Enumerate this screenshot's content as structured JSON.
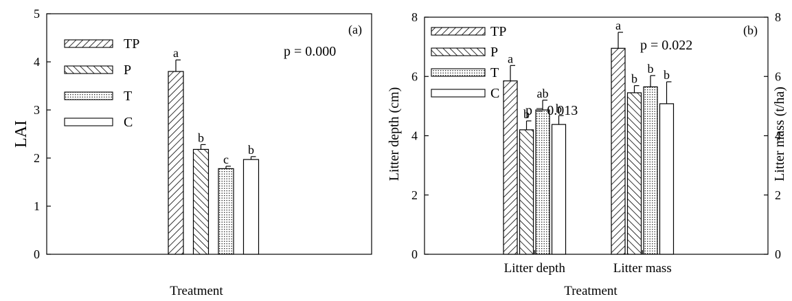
{
  "chart_data": [
    {
      "type": "bar",
      "panel_label": "(a)",
      "xlabel": "Treatment",
      "ylabel": "LAI",
      "ylim": [
        0,
        5
      ],
      "yticks": [
        "0",
        "1",
        "2",
        "3",
        "4",
        "5"
      ],
      "p_value": "p = 0.000",
      "legend_position": "top-left",
      "legend": [
        "TP",
        "P",
        "T",
        "C"
      ],
      "series": [
        {
          "name": "TP",
          "value": 3.8,
          "error": 0.24,
          "letter": "a",
          "pattern": "hatch-forward"
        },
        {
          "name": "P",
          "value": 2.18,
          "error": 0.1,
          "letter": "b",
          "pattern": "hatch-back"
        },
        {
          "name": "T",
          "value": 1.78,
          "error": 0.05,
          "letter": "c",
          "pattern": "dots"
        },
        {
          "name": "C",
          "value": 1.97,
          "error": 0.06,
          "letter": "b",
          "pattern": "none"
        }
      ]
    },
    {
      "type": "bar",
      "panel_label": "(b)",
      "xlabel": "Treatment",
      "ylabel": "Litter depth (cm)",
      "ylabel_right": "Litter mass (t/ha)",
      "ylim": [
        0,
        8
      ],
      "ylim_right": [
        0,
        8
      ],
      "yticks": [
        "0",
        "2",
        "4",
        "6",
        "8"
      ],
      "categories": [
        "Litter depth",
        "Litter mass"
      ],
      "legend_position": "top-left",
      "legend": [
        "TP",
        "P",
        "T",
        "C"
      ],
      "groups": [
        {
          "category": "Litter depth",
          "p_value": "p = 0.013",
          "values": [
            5.85,
            4.2,
            4.87,
            4.38
          ],
          "errors": [
            0.52,
            0.3,
            0.33,
            0.3
          ],
          "letters": [
            "a",
            "b",
            "ab",
            "b"
          ]
        },
        {
          "category": "Litter mass",
          "p_value": "p = 0.022",
          "values": [
            6.95,
            5.45,
            5.65,
            5.08
          ],
          "errors": [
            0.54,
            0.24,
            0.38,
            0.74
          ],
          "letters": [
            "a",
            "b",
            "b",
            "b"
          ]
        }
      ]
    }
  ]
}
